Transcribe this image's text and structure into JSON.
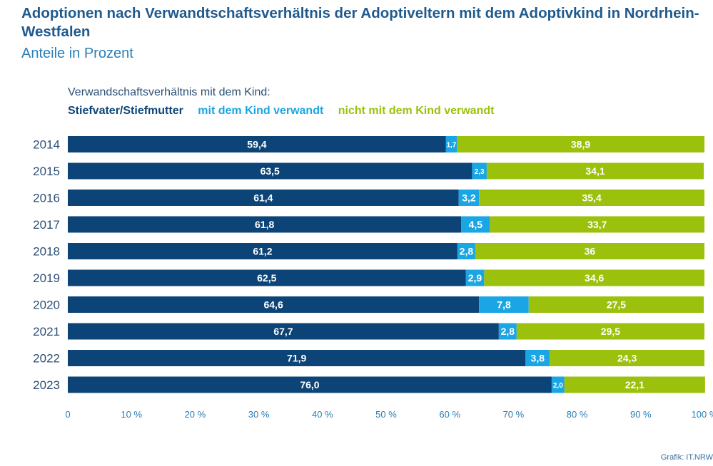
{
  "title": "Adoptionen nach Verwandtschaftsverhältnis der Adoptiveltern mit dem Adoptivkind in Nordrhein-Westfalen",
  "subtitle": "Anteile in Prozent",
  "legend_title": "Verwandschaftsverhältnis mit dem Kind:",
  "source": "Grafik: IT.NRW",
  "colors": {
    "stiefeltern": "#0d4477",
    "verwandt": "#1aa6e4",
    "nicht_verwandt": "#9bc10d"
  },
  "chart_data": {
    "type": "bar",
    "orientation": "horizontal",
    "stacked": true,
    "categories": [
      "2014",
      "2015",
      "2016",
      "2017",
      "2018",
      "2019",
      "2020",
      "2021",
      "2022",
      "2023"
    ],
    "series": [
      {
        "name": "Stiefvater/Stiefmutter",
        "values": [
          59.4,
          63.5,
          61.4,
          61.8,
          61.2,
          62.5,
          64.6,
          67.7,
          71.9,
          76.0
        ],
        "labels": [
          "59,4",
          "63,5",
          "61,4",
          "61,8",
          "61,2",
          "62,5",
          "64,6",
          "67,7",
          "71,9",
          "76,0"
        ]
      },
      {
        "name": "mit dem Kind verwandt",
        "values": [
          1.7,
          2.3,
          3.2,
          4.5,
          2.8,
          2.9,
          7.8,
          2.8,
          3.8,
          2.0
        ],
        "labels": [
          "1,7",
          "2,3",
          "3,2",
          "4,5",
          "2,8",
          "2,9",
          "7,8",
          "2,8",
          "3,8",
          "2,0"
        ]
      },
      {
        "name": "nicht mit dem Kind verwandt",
        "values": [
          38.9,
          34.1,
          35.4,
          33.7,
          36,
          34.6,
          27.5,
          29.5,
          24.3,
          22.1
        ],
        "labels": [
          "38,9",
          "34,1",
          "35,4",
          "33,7",
          "36",
          "34,6",
          "27,5",
          "29,5",
          "24,3",
          "22,1"
        ]
      }
    ],
    "xlim": [
      0,
      100
    ],
    "x_ticks": [
      0,
      10,
      20,
      30,
      40,
      50,
      60,
      70,
      80,
      90,
      100
    ],
    "x_tick_labels": [
      "0",
      "10 %",
      "20 %",
      "30 %",
      "40 %",
      "50 %",
      "60 %",
      "70 %",
      "80 %",
      "90 %",
      "100 %"
    ],
    "grid": false,
    "legend_position": "top-left"
  }
}
